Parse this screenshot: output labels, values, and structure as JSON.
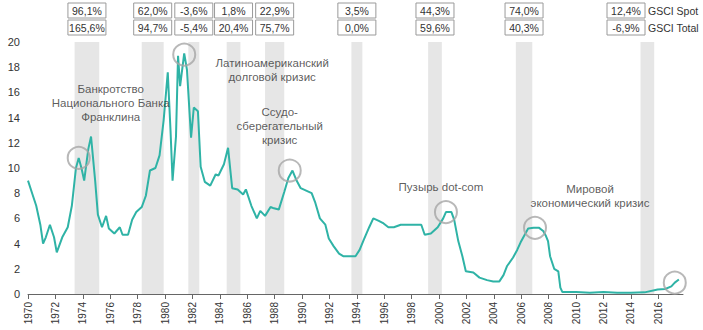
{
  "chart_data": {
    "type": "line",
    "color": "#2fb3a6",
    "x": [
      1970.0,
      1970.3,
      1970.6,
      1970.9,
      1971.1,
      1971.3,
      1971.6,
      1971.9,
      1972.1,
      1972.5,
      1972.9,
      1973.2,
      1973.5,
      1973.7,
      1973.9,
      1974.1,
      1974.4,
      1974.6,
      1974.9,
      1975.1,
      1975.4,
      1975.7,
      1975.9,
      1976.3,
      1976.7,
      1976.9,
      1977.3,
      1977.6,
      1977.9,
      1978.3,
      1978.6,
      1978.9,
      1979.3,
      1979.6,
      1979.9,
      1980.2,
      1980.4,
      1980.55,
      1980.8,
      1980.95,
      1981.1,
      1981.4,
      1981.6,
      1981.9,
      1982.1,
      1982.4,
      1982.6,
      1982.9,
      1983.3,
      1983.7,
      1983.9,
      1984.3,
      1984.6,
      1984.9,
      1985.3,
      1985.7,
      1985.9,
      1986.3,
      1986.7,
      1986.95,
      1987.3,
      1987.7,
      1987.95,
      1988.3,
      1988.7,
      1989.0,
      1989.3,
      1989.6,
      1989.9,
      1990.3,
      1990.7,
      1990.95,
      1991.3,
      1991.7,
      1991.95,
      1992.3,
      1992.7,
      1993.0,
      1993.5,
      1993.9,
      1994.2,
      1994.5,
      1994.9,
      1995.2,
      1995.6,
      1995.95,
      1996.3,
      1996.7,
      1997.2,
      1997.7,
      1998.2,
      1998.7,
      1998.95,
      1999.4,
      1999.9,
      2000.3,
      2000.5,
      2000.9,
      2001.1,
      2001.4,
      2001.7,
      2001.95,
      2002.5,
      2002.95,
      2003.5,
      2003.95,
      2004.4,
      2004.7,
      2004.95,
      2005.4,
      2005.7,
      2005.95,
      2006.3,
      2006.5,
      2006.9,
      2007.3,
      2007.6,
      2007.8,
      2007.95,
      2008.1,
      2008.4,
      2008.7,
      2008.85,
      2009.0,
      2010.0,
      2011.0,
      2012.0,
      2013.0,
      2014.0,
      2015.0,
      2015.95,
      2016.5,
      2016.95,
      2017.2,
      2017.5
    ],
    "values": [
      9.0,
      8.0,
      7.0,
      5.5,
      4.0,
      4.5,
      5.5,
      4.5,
      3.3,
      4.5,
      5.3,
      7.0,
      10.0,
      10.8,
      10.0,
      9.0,
      11.5,
      12.5,
      9.0,
      6.3,
      5.3,
      6.2,
      5.2,
      4.8,
      5.3,
      4.7,
      4.7,
      5.9,
      6.5,
      6.9,
      7.8,
      9.8,
      10.0,
      11.0,
      13.8,
      17.6,
      13.0,
      9.0,
      12.5,
      18.9,
      16.5,
      19.1,
      17.8,
      12.4,
      14.8,
      14.5,
      10.1,
      8.9,
      8.6,
      9.5,
      9.4,
      10.3,
      11.6,
      8.4,
      8.3,
      7.9,
      8.3,
      7.0,
      6.0,
      6.6,
      6.2,
      6.9,
      6.8,
      6.7,
      8.1,
      9.2,
      9.8,
      9.0,
      8.4,
      8.2,
      8.0,
      7.3,
      6.0,
      5.5,
      4.4,
      3.8,
      3.2,
      3.0,
      3.0,
      3.0,
      3.5,
      4.3,
      5.3,
      6.0,
      5.8,
      5.6,
      5.3,
      5.3,
      5.5,
      5.5,
      5.5,
      5.5,
      4.7,
      4.8,
      5.3,
      6.0,
      6.5,
      6.5,
      5.9,
      4.2,
      3.0,
      1.8,
      1.7,
      1.3,
      1.1,
      1.0,
      1.0,
      1.5,
      2.2,
      2.9,
      3.5,
      4.1,
      4.8,
      5.2,
      5.25,
      5.25,
      5.0,
      4.6,
      4.2,
      3.0,
      2.0,
      1.8,
      0.5,
      0.15,
      0.15,
      0.1,
      0.15,
      0.1,
      0.1,
      0.13,
      0.36,
      0.4,
      0.6,
      0.9,
      1.15
    ],
    "xlim": [
      1970,
      2017.8
    ],
    "xticks": [
      1970,
      1972,
      1974,
      1976,
      1978,
      1980,
      1982,
      1984,
      1986,
      1988,
      1990,
      1992,
      1994,
      1996,
      1998,
      2000,
      2002,
      2004,
      2006,
      2008,
      2010,
      2012,
      2014,
      2016
    ],
    "ylim": [
      0,
      20
    ],
    "yticks": [
      0,
      2,
      4,
      6,
      8,
      10,
      12,
      14,
      16,
      18,
      20
    ],
    "grid": false,
    "table_rows": [
      "GSCI Spot",
      "GSCI Total"
    ],
    "periods": [
      {
        "start": 1973.4,
        "end": 1975.2,
        "values": [
          "96,1%",
          "165,6%"
        ]
      },
      {
        "start": 1978.3,
        "end": 1979.9,
        "values": [
          "62,0%",
          "94,7%"
        ]
      },
      {
        "start": 1981.7,
        "end": 1982.5,
        "values": [
          "-3,6%",
          "-5,4%"
        ]
      },
      {
        "start": 1984.5,
        "end": 1985.5,
        "values": [
          "1,8%",
          "20,4%"
        ]
      },
      {
        "start": 1987.3,
        "end": 1988.7,
        "values": [
          "22,9%",
          "75,7%"
        ]
      },
      {
        "start": 1993.6,
        "end": 1994.4,
        "values": [
          "3,5%",
          "0,0%"
        ]
      },
      {
        "start": 1999.2,
        "end": 2000.2,
        "values": [
          "44,3%",
          "59,6%"
        ]
      },
      {
        "start": 2005.6,
        "end": 2006.8,
        "values": [
          "74,0%",
          "40,3%"
        ]
      },
      {
        "start": 2014.7,
        "end": 2015.7,
        "values": [
          "12,4%",
          "-6,9%"
        ]
      }
    ],
    "annotations": [
      {
        "text": "Банкротство\nНационального Банка\nФранклина",
        "x": 1973.7,
        "y": 10.8
      },
      {
        "text": "Латиноамериканский\nдолговой кризис",
        "x": 1981.4,
        "y": 19.0
      },
      {
        "text": "Ссудо-\nсберегательный\nкризис",
        "x": 1989.1,
        "y": 9.8
      },
      {
        "text": "Пузырь dot-com",
        "x": 2000.5,
        "y": 6.5
      },
      {
        "text": "Мировой\nэкономический кризис",
        "x": 2007.0,
        "y": 5.25
      },
      {
        "x": 2017.2,
        "y": 0.9
      }
    ]
  }
}
